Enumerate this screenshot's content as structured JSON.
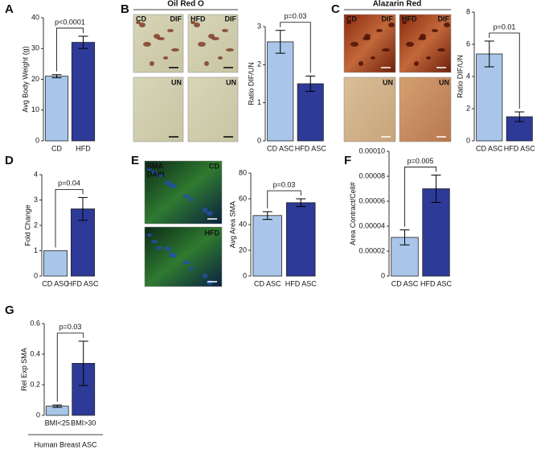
{
  "panels": [
    "A",
    "B",
    "C",
    "D",
    "E",
    "F",
    "G"
  ],
  "images": [
    {
      "title": "Oil Red O",
      "labels": [
        "CD",
        "DIF",
        "HFD",
        "DIF",
        "UN",
        "UN"
      ]
    },
    {
      "title": "Alazarin Red",
      "labels": [
        "CD",
        "DIF",
        "HFD",
        "DIF",
        "UN",
        "UN"
      ]
    },
    {
      "labels": [
        "SMA",
        "DAPI",
        "CD",
        "HFD"
      ]
    }
  ],
  "chart_data": [
    {
      "type": "bar",
      "ylabel": "Avg Body Weight (g)",
      "categories": [
        "CD",
        "HFD"
      ],
      "values": [
        21,
        32
      ],
      "errors": [
        0.5,
        2
      ],
      "colors": [
        "#a9c6ea",
        "#2e3a97"
      ],
      "ylim": [
        0,
        40
      ],
      "yticks": [
        0,
        10,
        20,
        30,
        40
      ],
      "annotation": "p<0.0001"
    },
    {
      "type": "bar",
      "ylabel": "Ratio DIF/UN",
      "categories": [
        "CD ASC",
        "HFD ASC"
      ],
      "values": [
        2.6,
        1.5
      ],
      "errors": [
        0.3,
        0.2
      ],
      "colors": [
        "#a9c6ea",
        "#2e3a97"
      ],
      "ylim": [
        0,
        3
      ],
      "yticks": [
        0,
        1,
        2,
        3
      ],
      "annotation": "p=0.03"
    },
    {
      "type": "bar",
      "ylabel": "Ratio DIF/UN",
      "categories": [
        "CD ASC",
        "HFD ASC"
      ],
      "values": [
        5.4,
        1.5
      ],
      "errors": [
        0.8,
        0.3
      ],
      "colors": [
        "#a9c6ea",
        "#2e3a97"
      ],
      "ylim": [
        0,
        8
      ],
      "yticks": [
        0,
        2,
        4,
        6,
        8
      ],
      "annotation": "p=0.01"
    },
    {
      "type": "bar",
      "ylabel": "Fold Change",
      "categories": [
        "CD ASC",
        "HFD ASC"
      ],
      "values": [
        1,
        2.65
      ],
      "errors": [
        null,
        0.45
      ],
      "colors": [
        "#a9c6ea",
        "#2e3a97"
      ],
      "ylim": [
        0,
        4
      ],
      "yticks": [
        0,
        1,
        2,
        3,
        4
      ],
      "annotation": "p=0.04"
    },
    {
      "type": "bar",
      "ylabel": "Avg Area SMA",
      "categories": [
        "CD ASC",
        "HFD ASC"
      ],
      "values": [
        47,
        57
      ],
      "errors": [
        3,
        3
      ],
      "colors": [
        "#a9c6ea",
        "#2e3a97"
      ],
      "ylim": [
        0,
        80
      ],
      "yticks": [
        0,
        20,
        40,
        60,
        80
      ],
      "annotation": "p=0.03"
    },
    {
      "type": "bar",
      "ylabel": "Area Contract/Cell#",
      "categories": [
        "CD ASC",
        "HFD ASC"
      ],
      "values": [
        3.1e-05,
        7e-05
      ],
      "errors": [
        6e-06,
        1.1e-05
      ],
      "colors": [
        "#a9c6ea",
        "#2e3a97"
      ],
      "ylim": [
        0,
        0.0001
      ],
      "yticks": [
        0,
        2e-05,
        4e-05,
        6e-05,
        8e-05,
        {
          "value": 0.0001,
          "label": "0.00010"
        }
      ],
      "annotation": "p=0.005"
    },
    {
      "type": "bar",
      "ylabel": "Rel Exp SMA",
      "categories": [
        "BMI<25",
        "BMI>30"
      ],
      "values": [
        0.06,
        0.34
      ],
      "errors": [
        0.008,
        0.145
      ],
      "colors": [
        "#a9c6ea",
        "#2e3a97"
      ],
      "ylim": [
        0,
        0.6
      ],
      "yticks": [
        0,
        0.2,
        0.4,
        0.6
      ],
      "annotation": "p=0.03",
      "xlabel": "Human Breast ASC"
    }
  ]
}
